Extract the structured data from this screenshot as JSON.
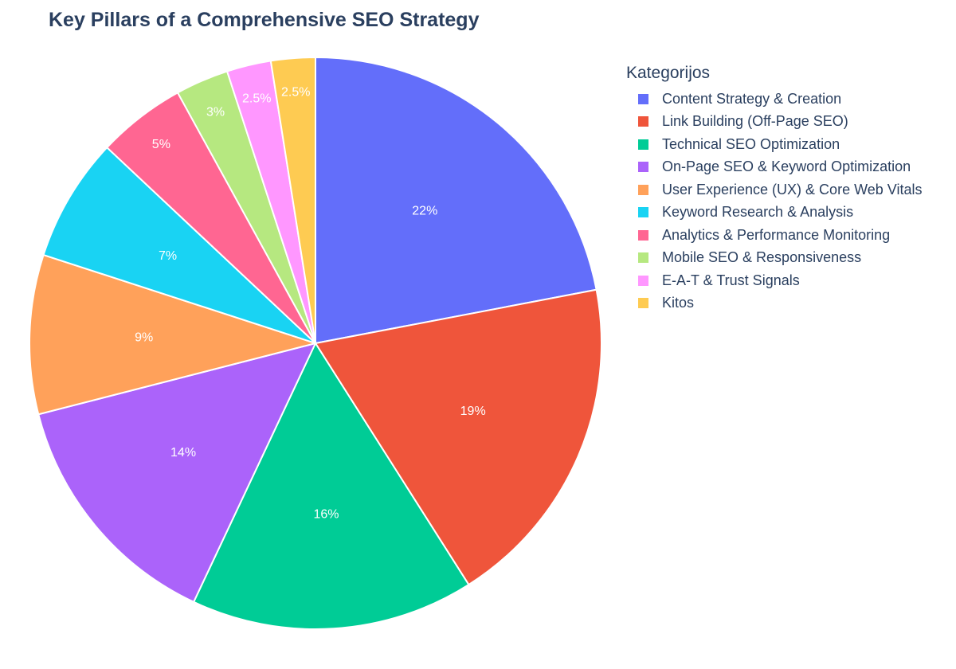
{
  "chart_data": {
    "type": "pie",
    "title": "Key Pillars of a Comprehensive SEO Strategy",
    "legend_title": "Kategorijos",
    "legend_position": "right",
    "slices": [
      {
        "label": "Content Strategy & Creation",
        "value": 22,
        "display": "22%",
        "color": "#636efa"
      },
      {
        "label": "Link Building (Off-Page SEO)",
        "value": 19,
        "display": "19%",
        "color": "#ef553b"
      },
      {
        "label": "Technical SEO Optimization",
        "value": 16,
        "display": "16%",
        "color": "#00cc96"
      },
      {
        "label": "On-Page SEO & Keyword Optimization",
        "value": 14,
        "display": "14%",
        "color": "#ab63fa"
      },
      {
        "label": "User Experience (UX) & Core Web Vitals",
        "value": 9,
        "display": "9%",
        "color": "#ffa15a"
      },
      {
        "label": "Keyword Research & Analysis",
        "value": 7,
        "display": "7%",
        "color": "#19d3f3"
      },
      {
        "label": "Analytics & Performance Monitoring",
        "value": 5,
        "display": "5%",
        "color": "#ff6692"
      },
      {
        "label": "Mobile SEO & Responsiveness",
        "value": 3,
        "display": "3%",
        "color": "#b6e880"
      },
      {
        "label": "E-A-T & Trust Signals",
        "value": 2.5,
        "display": "2.5%",
        "color": "#ff97ff"
      },
      {
        "label": "Kitos",
        "value": 2.5,
        "display": "2.5%",
        "color": "#fecb52"
      }
    ]
  }
}
